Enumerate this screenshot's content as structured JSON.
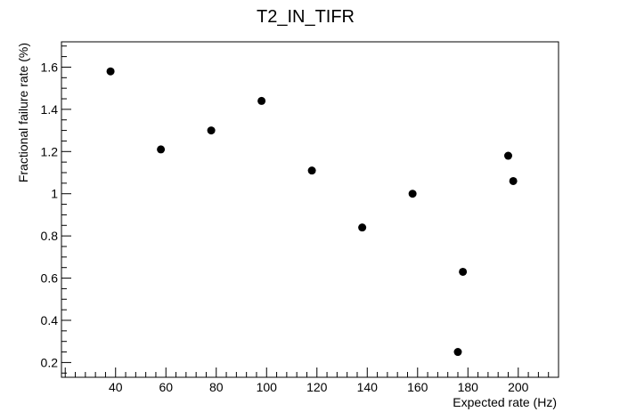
{
  "chart_data": {
    "type": "scatter",
    "title": "T2_IN_TIFR",
    "xlabel": "Expected rate (Hz)",
    "ylabel": "Fractional failure rate (%)",
    "xlim": [
      18.5,
      216
    ],
    "ylim": [
      0.13,
      1.72
    ],
    "x_ticks": [
      40,
      60,
      80,
      100,
      120,
      140,
      160,
      180,
      200
    ],
    "x_tick_labels": [
      "40",
      "60",
      "80",
      "100",
      "120",
      "140",
      "160",
      "180",
      "200"
    ],
    "y_ticks": [
      0.2,
      0.4,
      0.6,
      0.8,
      1.0,
      1.2,
      1.4,
      1.6
    ],
    "y_tick_labels": [
      "0.2",
      "0.4",
      "0.6",
      "0.8",
      "1",
      "1.2",
      "1.4",
      "1.6"
    ],
    "grid": false,
    "marker_color": "#000000",
    "series": [
      {
        "points": [
          {
            "x": 38,
            "y": 1.58
          },
          {
            "x": 58,
            "y": 1.21
          },
          {
            "x": 78,
            "y": 1.3
          },
          {
            "x": 98,
            "y": 1.44
          },
          {
            "x": 118,
            "y": 1.11
          },
          {
            "x": 138,
            "y": 0.84
          },
          {
            "x": 158,
            "y": 1.0
          },
          {
            "x": 176,
            "y": 0.25
          },
          {
            "x": 178,
            "y": 0.63
          },
          {
            "x": 196,
            "y": 1.18
          },
          {
            "x": 198,
            "y": 1.06
          }
        ]
      }
    ]
  }
}
